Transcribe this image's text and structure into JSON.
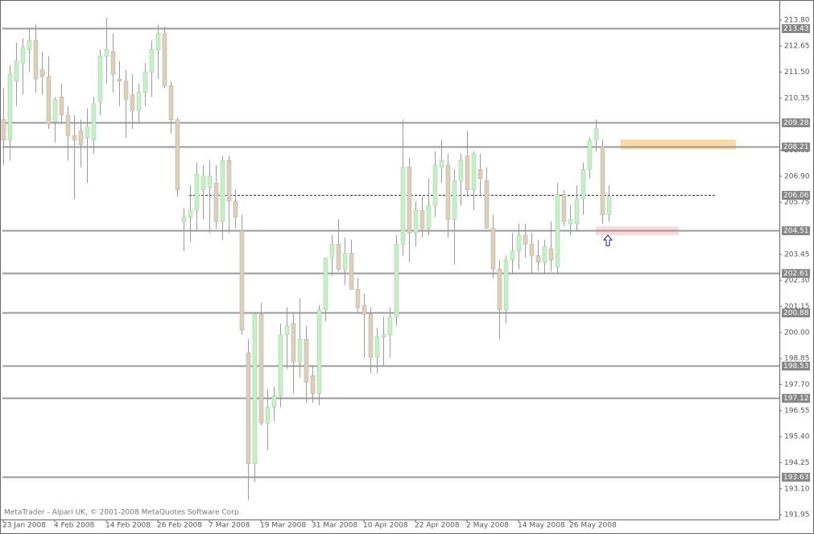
{
  "chart_data": {
    "type": "candlestick",
    "watermark": "MetaTrader - Alpari UK, © 2001-2008 MetaQuotes Software Corp.",
    "categories": [
      "23 Jan 2008",
      null,
      null,
      null,
      null,
      null,
      null,
      null,
      "4 Feb 2008",
      null,
      null,
      null,
      null,
      null,
      null,
      null,
      "14 Feb 2008",
      null,
      null,
      null,
      null,
      null,
      null,
      null,
      "26 Feb 2008",
      null,
      null,
      null,
      null,
      null,
      null,
      null,
      "7 Mar 2008",
      null,
      null,
      null,
      null,
      null,
      null,
      null,
      "19 Mar 2008",
      null,
      null,
      null,
      null,
      null,
      null,
      null,
      "31 Mar 2008",
      null,
      null,
      null,
      null,
      null,
      null,
      null,
      "10 Apr 2008",
      null,
      null,
      null,
      null,
      null,
      null,
      null,
      "22 Apr 2008",
      null,
      null,
      null,
      null,
      null,
      null,
      null,
      "2 May 2008",
      null,
      null,
      null,
      null,
      null,
      null,
      null,
      "14 May 2008",
      null,
      null,
      null,
      null,
      null,
      null,
      null,
      "26 May 2008",
      null,
      null,
      null,
      null,
      null,
      null
    ],
    "open": [
      209.4,
      208.5,
      211.1,
      211.9,
      212.5,
      212.9,
      211.6,
      211.3,
      209.3,
      210.4,
      209.6,
      208.7,
      208.9,
      208.6,
      208.5,
      210.2,
      212.2,
      212.4,
      211.2,
      211.1,
      210.5,
      209.8,
      210.6,
      211.5,
      212.5,
      213.2,
      210.9,
      209.4,
      204.9,
      205.1,
      205.4,
      206.3,
      206.4,
      206.6,
      204.9,
      207.6,
      205.8,
      204.5,
      199.1,
      194.2,
      200.8,
      196.0,
      196.7,
      197.2,
      199.9,
      200.4,
      198.7,
      199.7,
      198.1,
      197.3,
      201.0,
      203.3,
      203.9,
      202.8,
      203.5,
      201.9,
      201.2,
      200.8,
      198.9,
      199.8,
      199.9,
      200.7,
      203.9,
      207.3,
      204.4,
      205.4,
      204.6,
      205.6,
      207.3,
      207.4,
      205.0,
      206.7,
      207.8,
      206.3,
      207.2,
      206.7,
      204.6,
      202.8,
      201.0,
      203.2,
      203.6,
      204.3,
      203.9,
      203.4,
      203.1,
      203.7,
      202.9,
      206.1,
      204.8,
      204.8,
      205.9,
      207.2,
      208.5,
      208.2,
      205.2
    ],
    "high": [
      210.8,
      211.8,
      212.8,
      213.0,
      213.4,
      213.6,
      212.4,
      212.2,
      210.4,
      211.0,
      210.0,
      209.6,
      209.4,
      209.9,
      210.4,
      212.5,
      213.9,
      213.2,
      212.0,
      211.6,
      211.4,
      211.0,
      211.9,
      212.9,
      213.6,
      213.5,
      211.1,
      209.5,
      205.5,
      206.5,
      207.5,
      207.4,
      207.6,
      207.4,
      207.8,
      207.8,
      206.3,
      205.2,
      199.7,
      200.8,
      201.3,
      197.5,
      197.6,
      200.4,
      201.1,
      200.9,
      201.5,
      200.3,
      198.5,
      201.2,
      203.3,
      204.3,
      205.0,
      204.2,
      204.1,
      202.4,
      201.7,
      201.1,
      200.2,
      200.7,
      201.1,
      204.3,
      209.4,
      207.7,
      205.8,
      206.0,
      206.8,
      208.0,
      208.5,
      207.9,
      207.2,
      207.9,
      208.9,
      208.0,
      207.9,
      207.3,
      205.2,
      203.2,
      203.4,
      204.4,
      204.8,
      204.8,
      204.4,
      204.1,
      204.1,
      204.9,
      206.6,
      206.3,
      205.6,
      206.5,
      207.5,
      208.6,
      209.4,
      208.5,
      206.5
    ],
    "low": [
      207.4,
      207.6,
      210.0,
      210.5,
      211.5,
      210.6,
      210.5,
      209.0,
      208.4,
      209.2,
      207.6,
      205.9,
      207.3,
      206.6,
      207.9,
      209.6,
      211.0,
      210.6,
      210.0,
      208.6,
      209.0,
      209.2,
      210.0,
      210.4,
      211.2,
      210.8,
      208.8,
      206.0,
      203.6,
      204.0,
      204.5,
      205.0,
      204.4,
      204.6,
      204.1,
      204.4,
      204.6,
      199.9,
      192.6,
      193.4,
      195.9,
      194.8,
      196.1,
      196.7,
      198.4,
      197.3,
      198.0,
      196.9,
      196.9,
      196.8,
      200.5,
      202.5,
      202.7,
      202.1,
      201.9,
      200.9,
      198.9,
      198.2,
      198.2,
      198.5,
      198.9,
      200.3,
      203.4,
      203.1,
      203.8,
      204.2,
      204.3,
      205.1,
      206.6,
      204.2,
      203.0,
      205.6,
      206.0,
      205.4,
      206.0,
      204.6,
      202.4,
      199.7,
      200.4,
      202.6,
      202.8,
      203.3,
      202.6,
      202.7,
      202.6,
      202.7,
      202.6,
      204.7,
      204.3,
      204.5,
      205.2,
      206.8,
      208.0,
      204.8,
      204.9
    ],
    "close": [
      208.5,
      211.4,
      212.0,
      212.6,
      212.9,
      211.2,
      211.3,
      209.2,
      210.3,
      209.6,
      208.7,
      208.5,
      208.3,
      209.1,
      210.1,
      212.2,
      212.5,
      211.4,
      211.1,
      210.3,
      209.8,
      210.6,
      211.5,
      212.5,
      213.2,
      210.9,
      209.4,
      206.3,
      205.1,
      205.4,
      207.0,
      206.9,
      206.9,
      204.9,
      207.6,
      205.8,
      205.1,
      200.1,
      194.2,
      200.8,
      196.0,
      196.7,
      197.2,
      199.9,
      200.3,
      198.7,
      199.7,
      197.8,
      197.3,
      201.0,
      203.3,
      203.9,
      202.8,
      203.5,
      201.9,
      201.1,
      200.8,
      198.9,
      199.8,
      199.9,
      200.7,
      203.9,
      207.3,
      204.4,
      205.4,
      204.6,
      205.6,
      207.4,
      207.6,
      205.0,
      206.7,
      207.6,
      206.3,
      207.9,
      206.8,
      204.6,
      202.8,
      201.0,
      203.2,
      203.6,
      204.3,
      203.9,
      203.4,
      203.1,
      203.8,
      203.2,
      206.1,
      204.9,
      205.0,
      205.9,
      207.2,
      208.5,
      209.0,
      205.2,
      206.0
    ],
    "up_color": "#c8f0c8",
    "down_color": "#dccfbe",
    "ylim": [
      191.74,
      214.58
    ],
    "yticks": [
      {
        "value": 213.8,
        "label": "213.80"
      },
      212.65,
      {
        "value": 211.5,
        "label": "211.50"
      },
      210.35,
      208.05,
      {
        "value": 206.9,
        "label": "206.90"
      },
      205.75,
      203.45,
      {
        "value": 202.3,
        "label": "202.30"
      },
      201.15,
      {
        "value": 200,
        "label": "200.00"
      },
      198.85,
      {
        "value": 197.7,
        "label": "197.70"
      },
      196.55,
      {
        "value": 195.4,
        "label": "195.40"
      },
      194.25,
      {
        "value": 193.1,
        "label": "193.10"
      },
      191.95
    ],
    "levels": [
      {
        "value": 213.43
      },
      {
        "value": 209.28
      },
      {
        "value": 208.21
      },
      {
        "value": 206.06,
        "dashed": true
      },
      {
        "value": 204.51
      },
      {
        "value": 202.61
      },
      {
        "value": 200.88
      },
      {
        "value": 198.53
      },
      {
        "value": 197.12
      },
      {
        "value": 193.63
      }
    ],
    "zones": [
      {
        "from": 208.52,
        "to": 208.09,
        "color": "#fbd9a4"
      },
      {
        "from": 204.68,
        "to": 204.3,
        "color": "#f9d9d9"
      }
    ]
  }
}
